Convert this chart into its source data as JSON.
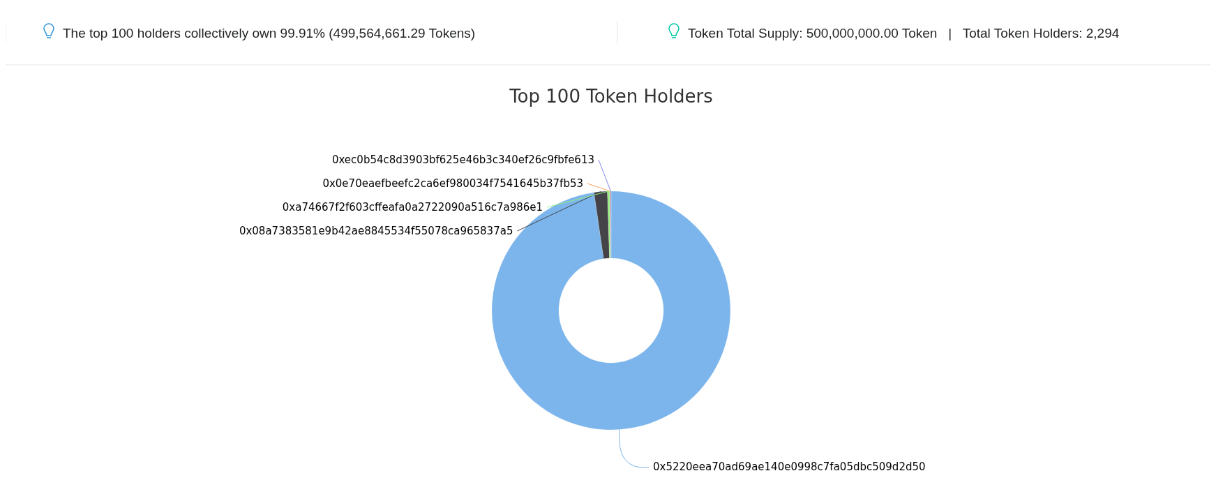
{
  "chart_data": {
    "type": "donut",
    "title": "Top 100 Token Holders",
    "annotations": [
      "The top 100 holders collectively own 99.91% (499,564,661.29 Tokens)",
      "Token Total Supply: 500,000,000.00 Token   |   Total Token Holders: 2,294"
    ],
    "categories": [
      "0x5220eea70ad69ae140e0998c7fa05dbc509d2d50",
      "0x08a7383581e9b42ae8845534f55078ca965837a5",
      "0xa74667f2f603cffeafa0a2722090a516c7a986e1",
      "0x0e70eaefbeefc2ca6ef980034f7541645b37fb53",
      "0xec0b54c8d3903bf625e46b3c340ef26c9fbfe613"
    ],
    "values": [
      97.7,
      1.8,
      0.3,
      0.1,
      0.1
    ],
    "colors": [
      "#7cb5ec",
      "#434348",
      "#90ed7d",
      "#f7a35c",
      "#8085e9"
    ]
  }
}
